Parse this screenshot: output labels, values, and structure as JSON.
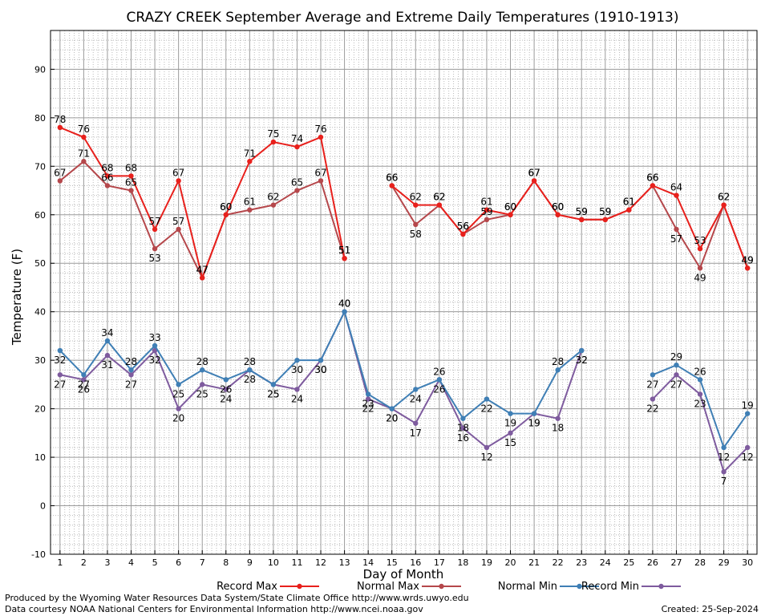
{
  "chart_data": {
    "type": "line",
    "title": "CRAZY CREEK September Average and Extreme Daily Temperatures (1910-1913)",
    "xlabel": "Day of Month",
    "ylabel": "Temperature (F)",
    "x": [
      1,
      2,
      3,
      4,
      5,
      6,
      7,
      8,
      9,
      10,
      11,
      12,
      13,
      14,
      15,
      16,
      17,
      18,
      19,
      20,
      21,
      22,
      23,
      24,
      25,
      26,
      27,
      28,
      29,
      30
    ],
    "xlim": [
      0.6,
      30.4
    ],
    "ylim": [
      -10,
      98
    ],
    "yticks": [
      -10,
      0,
      10,
      20,
      30,
      40,
      50,
      60,
      70,
      80,
      90
    ],
    "grid": true,
    "legend_position": "bottom",
    "series": [
      {
        "name": "Record Max",
        "color": "#e8201c",
        "values": [
          78,
          76,
          68,
          68,
          57,
          67,
          47,
          60,
          71,
          75,
          74,
          76,
          51,
          null,
          66,
          62,
          62,
          56,
          61,
          60,
          67,
          60,
          59,
          59,
          61,
          66,
          64,
          53,
          62,
          49
        ]
      },
      {
        "name": "Normal Max",
        "color": "#b5474b",
        "values": [
          67,
          71,
          66,
          65,
          53,
          57,
          47,
          60,
          61,
          62,
          65,
          67,
          51,
          null,
          66,
          58,
          62,
          56,
          59,
          60,
          67,
          60,
          59,
          59,
          61,
          66,
          57,
          49,
          62,
          49
        ]
      },
      {
        "name": "Normal Min",
        "color": "#3f7fb5",
        "values": [
          32,
          27,
          34,
          28,
          33,
          25,
          28,
          26,
          28,
          25,
          30,
          30,
          40,
          23,
          20,
          24,
          26,
          18,
          22,
          19,
          19,
          28,
          32,
          null,
          null,
          27,
          29,
          26,
          12,
          19
        ]
      },
      {
        "name": "Record Min",
        "color": "#7e5b9e",
        "values": [
          27,
          26,
          31,
          27,
          32,
          20,
          25,
          24,
          28,
          25,
          24,
          30,
          40,
          22,
          20,
          17,
          26,
          16,
          12,
          15,
          19,
          18,
          32,
          null,
          null,
          22,
          27,
          23,
          7,
          12
        ]
      }
    ],
    "label_positions": {
      "Record Max": [
        "above",
        "above",
        "above",
        "above",
        "above",
        "above",
        "above",
        "above",
        "above",
        "above",
        "above",
        "above",
        "above",
        "above",
        "above",
        "above",
        "above",
        "above",
        "above",
        "above",
        "above",
        "above",
        "above",
        "above",
        "above",
        "above",
        "above",
        "above",
        "above",
        "above"
      ],
      "Normal Max": [
        "above",
        "above",
        "above",
        "above",
        "below",
        "above",
        "above",
        "above",
        "above",
        "above",
        "above",
        "above",
        "above",
        "above",
        "above",
        "below",
        "above",
        "above",
        "above",
        "above",
        "above",
        "above",
        "above",
        "above",
        "above",
        "above",
        "below",
        "below",
        "above",
        "above"
      ],
      "Normal Min": [
        "below",
        "below",
        "above",
        "above",
        "above",
        "below",
        "above",
        "below",
        "above",
        "below",
        "below",
        "below",
        "above",
        "below",
        "below",
        "below",
        "above",
        "below",
        "below",
        "below",
        "below",
        "above",
        "below",
        "above",
        "above",
        "below",
        "above",
        "above",
        "below",
        "above"
      ],
      "Record Min": [
        "below",
        "below",
        "below",
        "below",
        "below",
        "below",
        "below",
        "below",
        "below",
        "below",
        "below",
        "below",
        "above",
        "below",
        "below",
        "below",
        "below",
        "below",
        "below",
        "below",
        "below",
        "below",
        "below",
        "below",
        "below",
        "below",
        "below",
        "below",
        "below",
        "below"
      ]
    }
  },
  "footer": {
    "credit_line1": "Produced by the Wyoming Water Resources Data System/State Climate Office http://www.wrds.uwyo.edu",
    "credit_line2": "Data courtesy NOAA National Centers for Environmental Information http://www.ncei.noaa.gov",
    "created": "Created:  25-Sep-2024"
  }
}
